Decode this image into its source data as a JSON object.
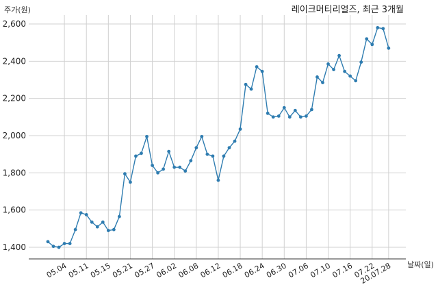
{
  "chart_data": {
    "type": "line",
    "title": "레이크머티리얼즈, 최근 3개월",
    "xlabel": "날짜(일)",
    "ylabel": "주가(원)",
    "ylim": [
      1350,
      2650
    ],
    "yticks": [
      1400,
      1600,
      1800,
      2000,
      2200,
      2400,
      2600
    ],
    "ytick_labels": [
      "1,400",
      "1,600",
      "1,800",
      "2,000",
      "2,200",
      "2,400",
      "2,600"
    ],
    "xticks": [
      "05.04",
      "05.11",
      "05.15",
      "05.21",
      "05.27",
      "06.02",
      "06.08",
      "06.12",
      "06.18",
      "06.24",
      "06.30",
      "07.06",
      "07.10",
      "07.16",
      "07.22",
      "20.07.28"
    ],
    "xtick_index": [
      3,
      7,
      11,
      15,
      19,
      23,
      27,
      31,
      35,
      39,
      43,
      47,
      51,
      55,
      59,
      62
    ],
    "grid": true,
    "color": "#2e7cb0",
    "series": [
      {
        "name": "",
        "values": [
          1430,
          1405,
          1400,
          1420,
          1420,
          1495,
          1585,
          1575,
          1535,
          1510,
          1535,
          1490,
          1495,
          1565,
          1795,
          1750,
          1890,
          1905,
          1995,
          1840,
          1800,
          1820,
          1915,
          1830,
          1830,
          1810,
          1865,
          1935,
          1995,
          1900,
          1890,
          1760,
          1890,
          1935,
          1970,
          2035,
          2275,
          2250,
          2370,
          2345,
          2120,
          2100,
          2105,
          2150,
          2100,
          2135,
          2100,
          2105,
          2140,
          2315,
          2285,
          2385,
          2355,
          2430,
          2345,
          2320,
          2295,
          2395,
          2520,
          2490,
          2580,
          2575,
          2470
        ]
      }
    ]
  }
}
